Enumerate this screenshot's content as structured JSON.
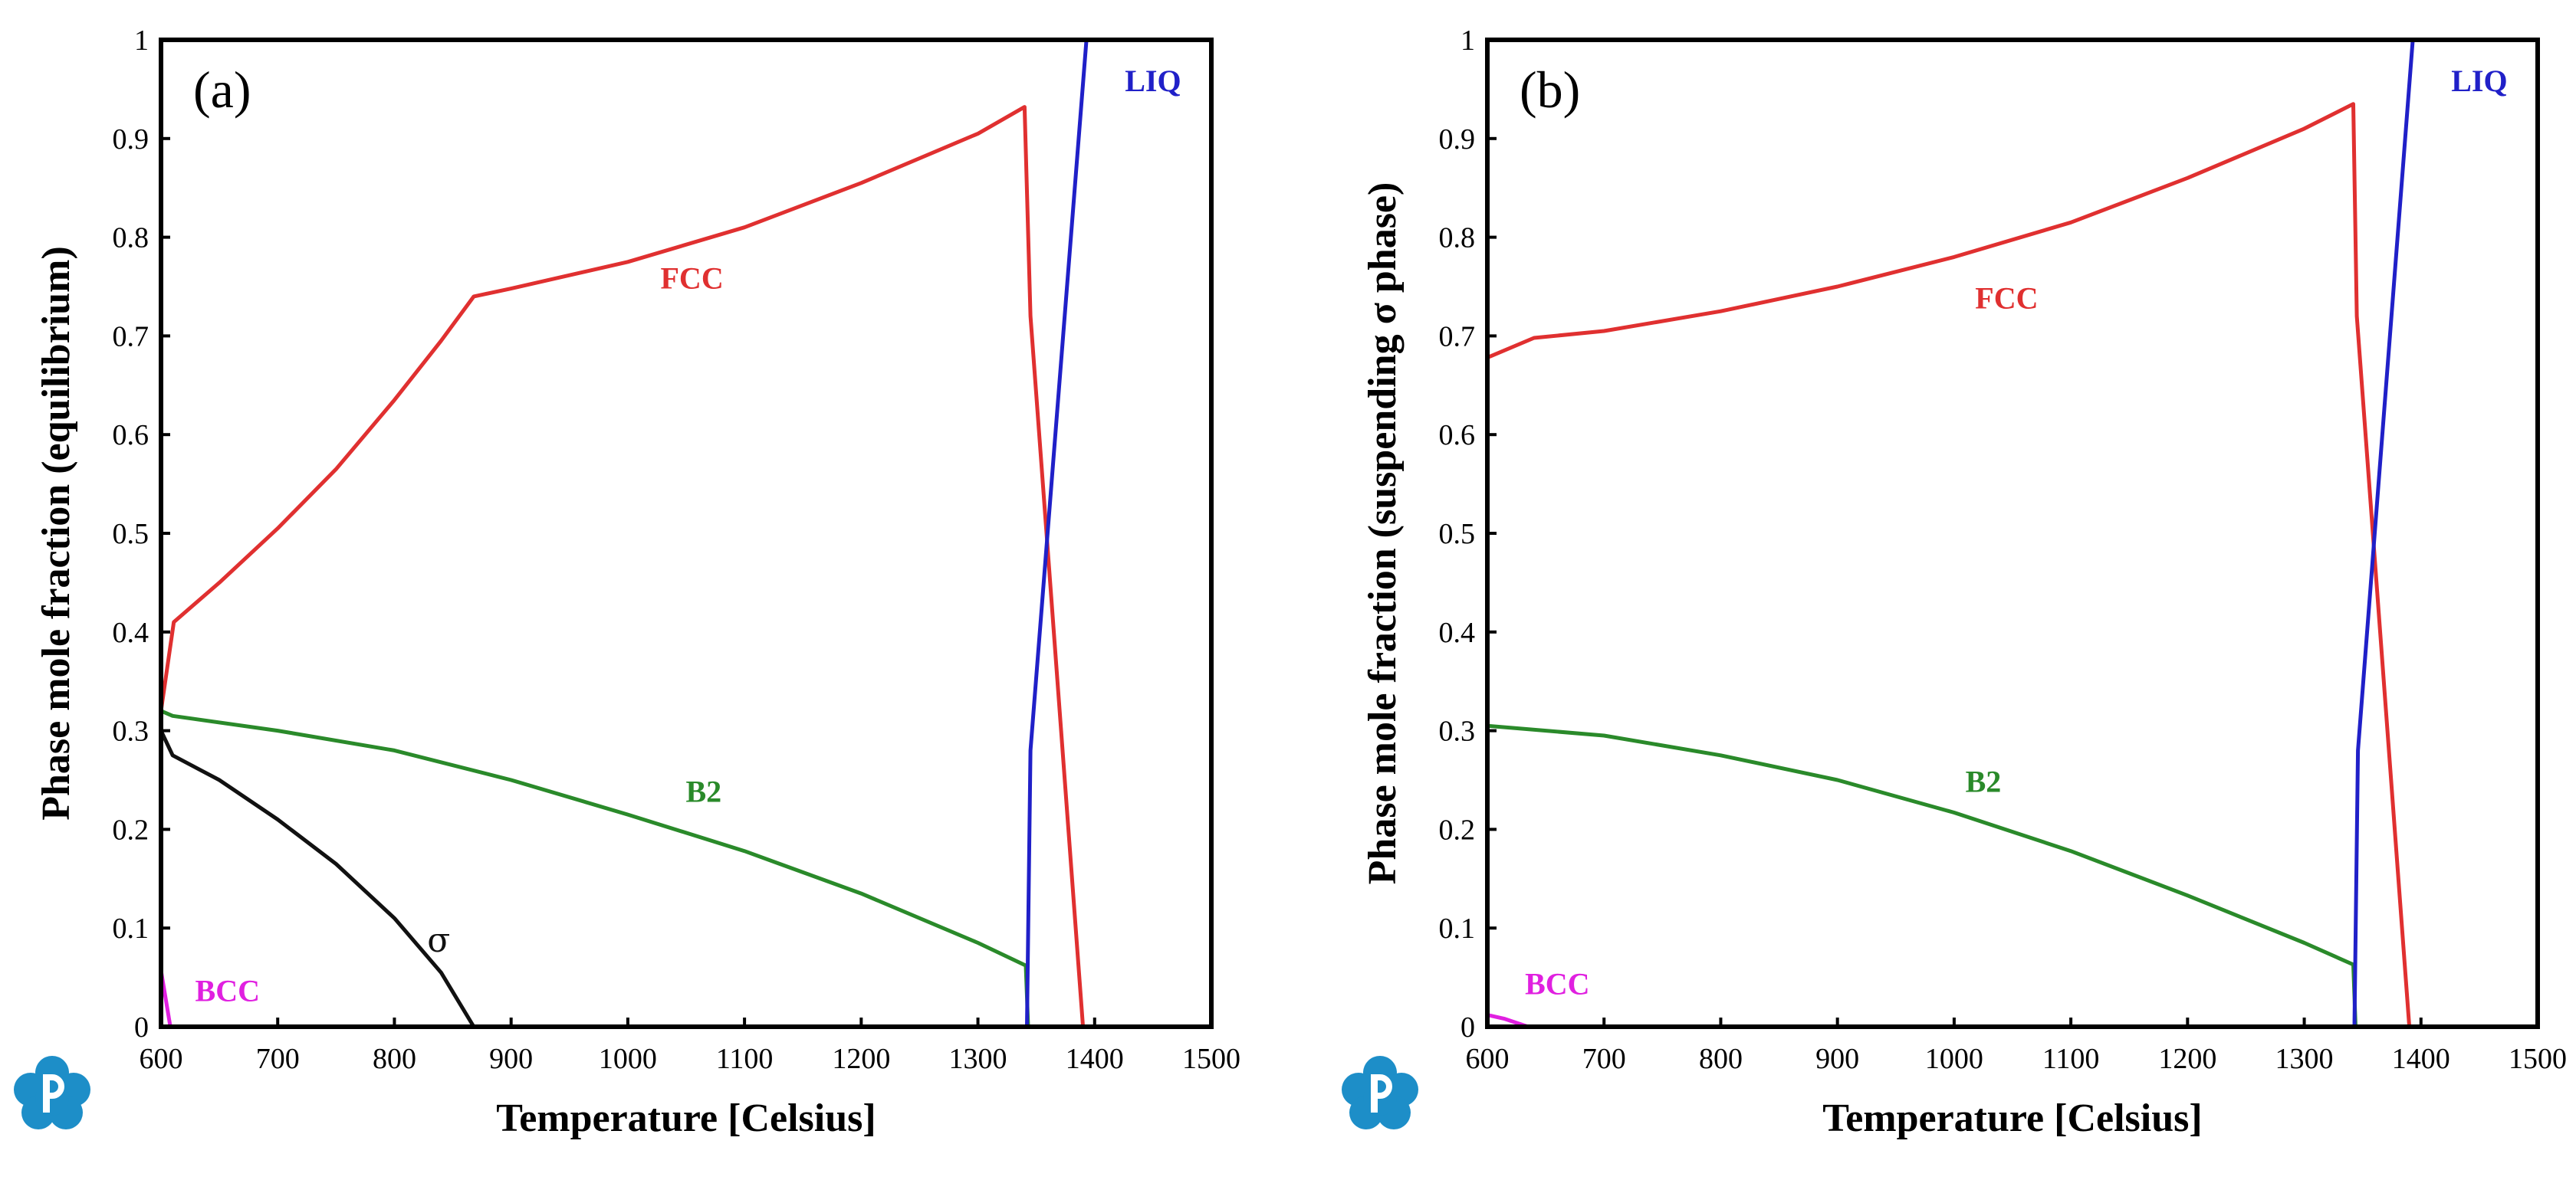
{
  "colors": {
    "FCC": "#e03030",
    "B2": "#2a8a2a",
    "LIQ": "#2020c8",
    "BCC": "#e020e0",
    "sigma": "#111111",
    "logo": "#1d8ec8"
  },
  "chart_data": [
    {
      "type": "line",
      "panel_label": "(a)",
      "xlabel": "Temperature [Celsius]",
      "ylabel": "Phase mole fraction (equilibrium)",
      "xlim": [
        600,
        1500
      ],
      "ylim": [
        0,
        1
      ],
      "xticks": [
        "600",
        "700",
        "800",
        "900",
        "1000",
        "1100",
        "1200",
        "1300",
        "1400",
        "1500"
      ],
      "yticks": [
        "0",
        "0.1",
        "0.2",
        "0.3",
        "0.4",
        "0.5",
        "0.6",
        "0.7",
        "0.8",
        "0.9",
        "1"
      ],
      "series": [
        {
          "name": "FCC",
          "label": "FCC",
          "color_key": "FCC",
          "x": [
            600,
            611,
            650,
            700,
            750,
            800,
            840,
            868,
            900,
            1000,
            1100,
            1200,
            1300,
            1340,
            1345,
            1390
          ],
          "y": [
            0.32,
            0.41,
            0.45,
            0.505,
            0.565,
            0.635,
            0.695,
            0.74,
            0.748,
            0.775,
            0.81,
            0.855,
            0.905,
            0.932,
            0.72,
            0.0
          ]
        },
        {
          "name": "B2",
          "label": "B2",
          "color_key": "B2",
          "x": [
            600,
            610,
            700,
            800,
            900,
            1000,
            1100,
            1200,
            1300,
            1341,
            1343
          ],
          "y": [
            0.32,
            0.315,
            0.3,
            0.28,
            0.25,
            0.215,
            0.178,
            0.135,
            0.085,
            0.062,
            0.0
          ]
        },
        {
          "name": "LIQ",
          "label": "LIQ",
          "color_key": "LIQ",
          "x": [
            1342,
            1345,
            1393,
            1500
          ],
          "y": [
            0.0,
            0.28,
            1.0,
            1.0
          ]
        },
        {
          "name": "sigma",
          "label": "σ",
          "color_key": "sigma",
          "x": [
            600,
            610,
            650,
            700,
            750,
            800,
            840,
            868
          ],
          "y": [
            0.3,
            0.275,
            0.25,
            0.21,
            0.165,
            0.11,
            0.055,
            0.0
          ]
        },
        {
          "name": "BCC",
          "label": "BCC",
          "color_key": "BCC",
          "x": [
            600,
            608
          ],
          "y": [
            0.057,
            0.0
          ]
        }
      ],
      "annotations": [
        {
          "text": "FCC",
          "x": 1055,
          "y": 0.755,
          "color_key": "FCC"
        },
        {
          "text": "B2",
          "x": 1065,
          "y": 0.235,
          "color_key": "B2"
        },
        {
          "text": "LIQ",
          "x": 1450,
          "y": 0.955,
          "color_key": "LIQ"
        },
        {
          "text": "σ",
          "x": 838,
          "y": 0.085,
          "color_key": "sigma"
        },
        {
          "text": "BCC",
          "x": 657,
          "y": 0.033,
          "color_key": "BCC"
        }
      ]
    },
    {
      "type": "line",
      "panel_label": "(b)",
      "xlabel": "Temperature [Celsius]",
      "ylabel": "Phase mole fraction (suspending σ phase)",
      "xlim": [
        600,
        1500
      ],
      "ylim": [
        0,
        1
      ],
      "xticks": [
        "600",
        "700",
        "800",
        "900",
        "1000",
        "1100",
        "1200",
        "1300",
        "1400",
        "1500"
      ],
      "yticks": [
        "0",
        "0.1",
        "0.2",
        "0.3",
        "0.4",
        "0.5",
        "0.6",
        "0.7",
        "0.8",
        "0.9",
        "1"
      ],
      "series": [
        {
          "name": "FCC",
          "label": "FCC",
          "color_key": "FCC",
          "x": [
            600,
            640,
            700,
            800,
            900,
            1000,
            1100,
            1200,
            1300,
            1342,
            1345,
            1390
          ],
          "y": [
            0.678,
            0.698,
            0.705,
            0.725,
            0.75,
            0.78,
            0.815,
            0.86,
            0.91,
            0.935,
            0.72,
            0.0
          ]
        },
        {
          "name": "B2",
          "label": "B2",
          "color_key": "B2",
          "x": [
            600,
            700,
            800,
            900,
            1000,
            1100,
            1200,
            1300,
            1342,
            1344
          ],
          "y": [
            0.305,
            0.295,
            0.275,
            0.25,
            0.217,
            0.178,
            0.133,
            0.085,
            0.063,
            0.0
          ]
        },
        {
          "name": "LIQ",
          "label": "LIQ",
          "color_key": "LIQ",
          "x": [
            1343,
            1346,
            1393,
            1500
          ],
          "y": [
            0.0,
            0.28,
            1.0,
            1.0
          ]
        },
        {
          "name": "BCC",
          "label": "BCC",
          "color_key": "BCC",
          "x": [
            600,
            615,
            635
          ],
          "y": [
            0.012,
            0.008,
            0.0
          ]
        }
      ],
      "annotations": [
        {
          "text": "FCC",
          "x": 1045,
          "y": 0.735,
          "color_key": "FCC"
        },
        {
          "text": "B2",
          "x": 1025,
          "y": 0.245,
          "color_key": "B2"
        },
        {
          "text": "LIQ",
          "x": 1450,
          "y": 0.955,
          "color_key": "LIQ"
        },
        {
          "text": "BCC",
          "x": 660,
          "y": 0.04,
          "color_key": "BCC"
        }
      ]
    }
  ]
}
